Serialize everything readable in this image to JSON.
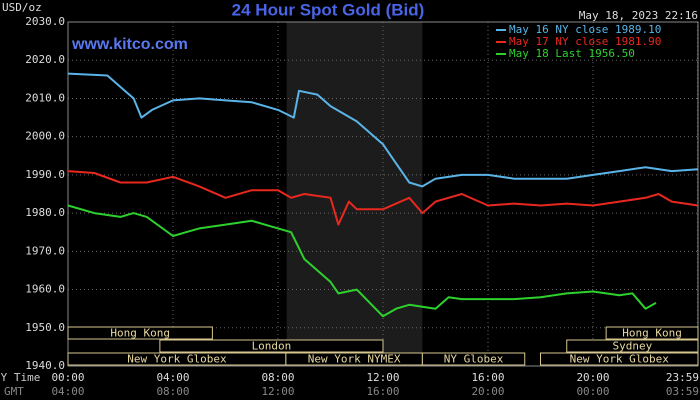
{
  "chart_data": {
    "type": "line",
    "title": "24 Hour Spot Gold (Bid)",
    "subtitle": "www.kitco.com",
    "y_label": "USD/oz",
    "timestamp": "May 18, 2023 22:16",
    "x_row_labels": [
      "NY Time",
      "GMT"
    ],
    "grid": true,
    "legend": "top-right",
    "xlim": [
      0,
      24
    ],
    "ylim": [
      1940,
      2030
    ],
    "yticks": [
      {
        "value": 1940,
        "label": "1940.0"
      },
      {
        "value": 1950,
        "label": "1950.0"
      },
      {
        "value": 1960,
        "label": "1960.0"
      },
      {
        "value": 1970,
        "label": "1970.0"
      },
      {
        "value": 1980,
        "label": "1980.0"
      },
      {
        "value": 1990,
        "label": "1990.0"
      },
      {
        "value": 2000,
        "label": "2000.0"
      },
      {
        "value": 2010,
        "label": "2010.0"
      },
      {
        "value": 2020,
        "label": "2020.0"
      },
      {
        "value": 2030,
        "label": "2030.0"
      }
    ],
    "xticks": [
      {
        "value": 0,
        "label": "00:00"
      },
      {
        "value": 4,
        "label": "04:00"
      },
      {
        "value": 8,
        "label": "08:00"
      },
      {
        "value": 12,
        "label": "12:00"
      },
      {
        "value": 16,
        "label": "16:00"
      },
      {
        "value": 20,
        "label": "20:00"
      },
      {
        "value": 23.98,
        "label": "23:59"
      }
    ],
    "xticks_gmt": [
      {
        "value": 0,
        "label": "04:00"
      },
      {
        "value": 4,
        "label": "08:00"
      },
      {
        "value": 8,
        "label": "12:00"
      },
      {
        "value": 12,
        "label": "16:00"
      },
      {
        "value": 16,
        "label": "20:00"
      },
      {
        "value": 20,
        "label": "00:00"
      },
      {
        "value": 23.98,
        "label": "03:59"
      }
    ],
    "highlight": [
      8.33,
      13.5
    ],
    "sessions": [
      {
        "name": "Hong Kong",
        "start": 0,
        "end": 5.5,
        "row": 1
      },
      {
        "name": "London",
        "start": 3.5,
        "end": 12,
        "row": 2
      },
      {
        "name": "New York Globex",
        "start": 0,
        "end": 8.3,
        "row": 3
      },
      {
        "name": "New York NYMEX",
        "start": 8.3,
        "end": 13.5,
        "row": 3
      },
      {
        "name": "NY Globex",
        "start": 13.5,
        "end": 17.4,
        "row": 3
      },
      {
        "name": "Hong Kong",
        "start": 20.5,
        "end": 24,
        "row": 1
      },
      {
        "name": "Sydney",
        "start": 19,
        "end": 24,
        "row": 2
      },
      {
        "name": "New York Globex",
        "start": 18,
        "end": 24,
        "row": 3
      }
    ],
    "series": [
      {
        "name": "May 16 NY close 1989.10",
        "color": "#5ab4e8",
        "x": [
          0,
          1.5,
          2,
          2.5,
          2.8,
          3.2,
          4,
          5,
          6,
          7,
          8,
          8.6,
          8.8,
          9.5,
          10,
          11,
          12,
          12.5,
          13,
          13.5,
          14,
          15,
          16,
          17,
          18,
          19,
          20,
          21,
          22,
          23,
          24
        ],
        "values": [
          2016.5,
          2016,
          2013,
          2010,
          2005,
          2007,
          2009.5,
          2010,
          2009.5,
          2009,
          2007,
          2005,
          2012,
          2011,
          2008,
          2004,
          1998,
          1993,
          1988,
          1987,
          1989,
          1990,
          1990,
          1989,
          1989,
          1989,
          1990,
          1991,
          1992,
          1991,
          1991.5
        ]
      },
      {
        "name": "May 17 NY close 1981.90",
        "color": "#e8281e",
        "x": [
          0,
          1,
          2,
          3,
          4,
          5,
          6,
          7,
          8,
          8.5,
          9,
          10,
          10.3,
          10.7,
          11,
          12,
          13,
          13.5,
          14,
          15,
          16,
          17,
          18,
          19,
          20,
          21,
          22,
          22.5,
          23,
          24
        ],
        "values": [
          1991,
          1990.5,
          1988,
          1988,
          1989.5,
          1987,
          1984,
          1986,
          1986,
          1984,
          1985,
          1984,
          1977,
          1983,
          1981,
          1981,
          1984,
          1980,
          1983,
          1985,
          1982,
          1982.5,
          1982,
          1982.5,
          1982,
          1983,
          1984,
          1985,
          1983,
          1982
        ]
      },
      {
        "name": "May 18 Last 1956.50",
        "color": "#2ed02e",
        "x": [
          0,
          1,
          2,
          2.5,
          3,
          4,
          4.5,
          5,
          6,
          7,
          8,
          8.5,
          9,
          10,
          10.3,
          11,
          12,
          12.5,
          13,
          14,
          14.5,
          15,
          16,
          17,
          18,
          19,
          20,
          21,
          21.5,
          22,
          22.4
        ],
        "values": [
          1982,
          1980,
          1979,
          1980,
          1979,
          1974,
          1975,
          1976,
          1977,
          1978,
          1976,
          1975,
          1968,
          1962,
          1959,
          1960,
          1953,
          1955,
          1956,
          1955,
          1958,
          1957.5,
          1957.5,
          1957.5,
          1958,
          1959,
          1959.5,
          1958.5,
          1959,
          1955,
          1956.5
        ]
      }
    ]
  }
}
